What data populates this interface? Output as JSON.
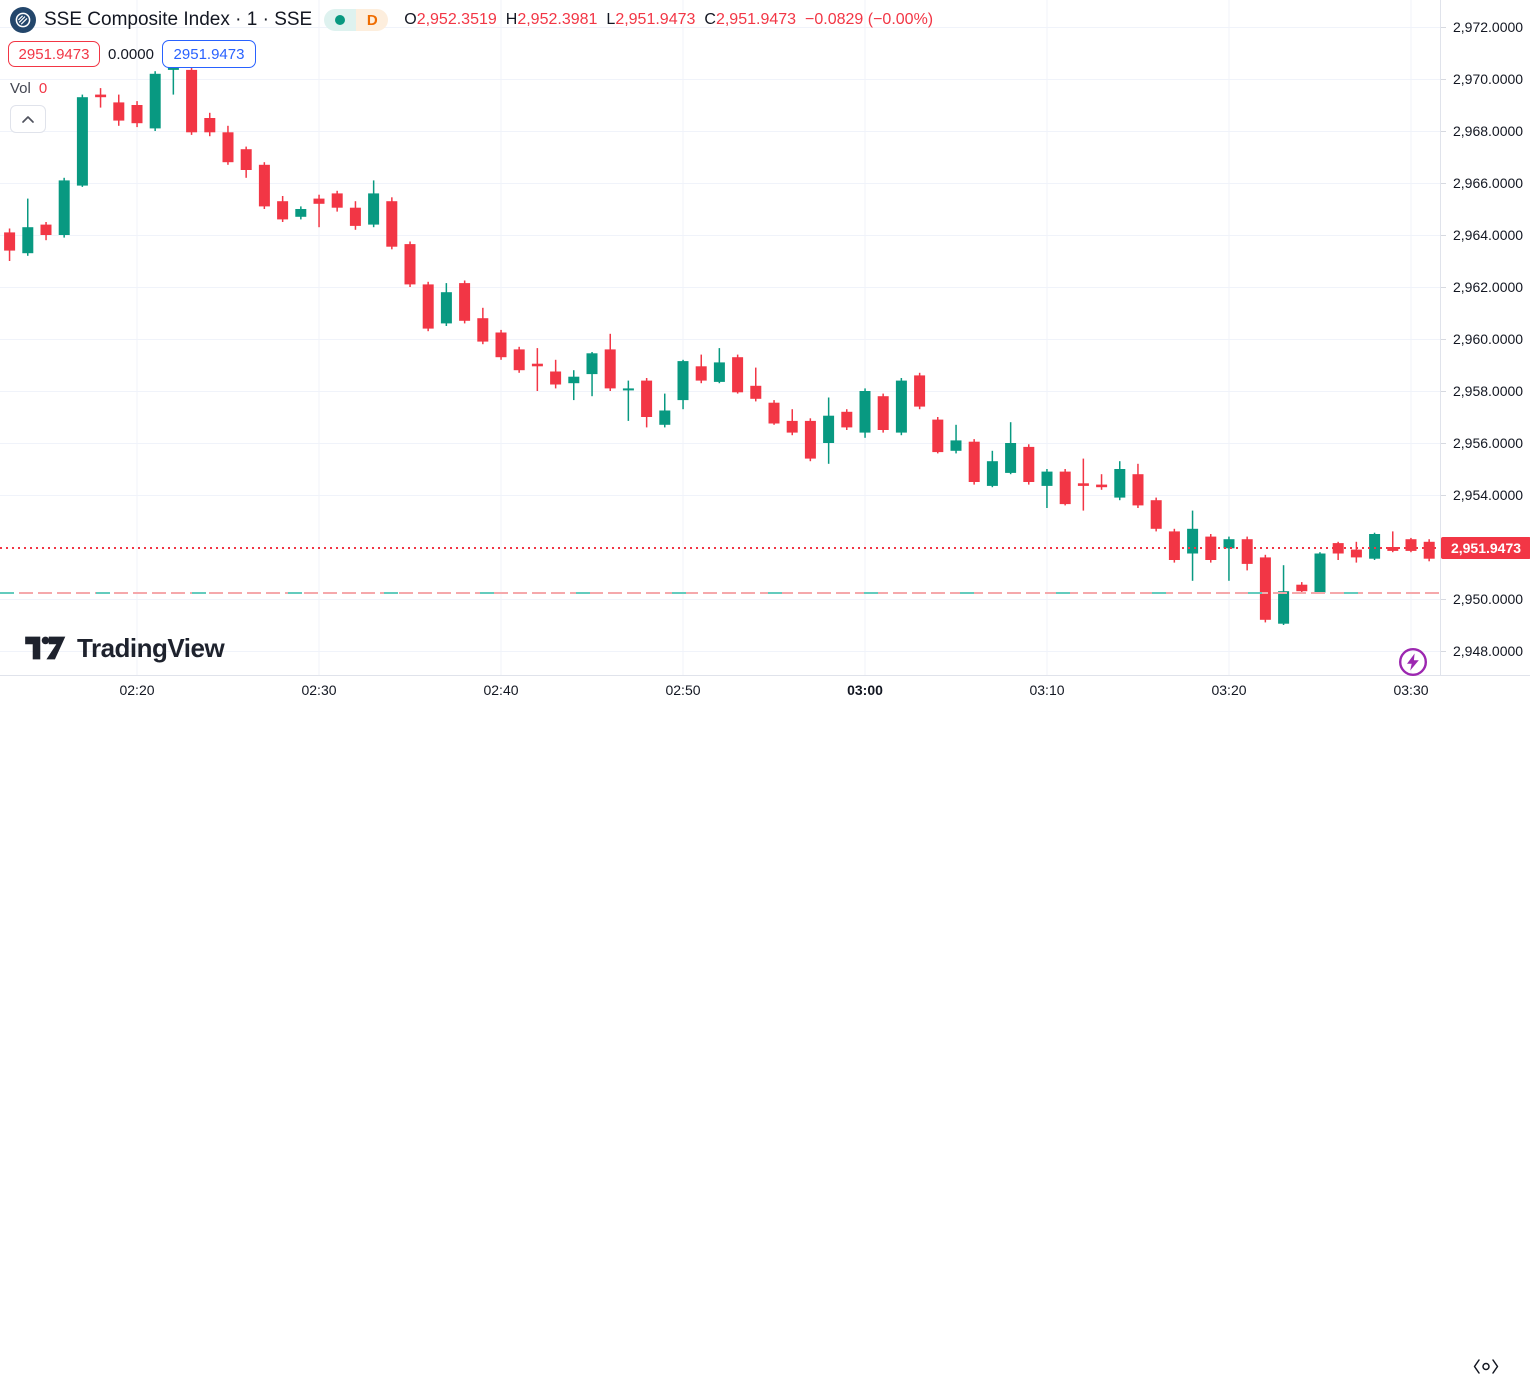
{
  "header": {
    "symbol_title": "SSE Composite Index · 1 · SSE",
    "interval_label": "D",
    "ohlc": [
      {
        "label": "O",
        "value": "2,952.3519"
      },
      {
        "label": "H",
        "value": "2,952.3981"
      },
      {
        "label": "L",
        "value": "2,951.9473"
      },
      {
        "label": "C",
        "value": "2,951.9473"
      }
    ],
    "change": "−0.0829 (−0.00%)",
    "sell_price": "2951.9473",
    "spread": "0.0000",
    "buy_price": "2951.9473",
    "vol_label": "Vol",
    "vol_value": "0"
  },
  "watermark_text": "TradingView",
  "price_axis": {
    "ticks": [
      "2,972.0000",
      "2,970.0000",
      "2,968.0000",
      "2,966.0000",
      "2,964.0000",
      "2,962.0000",
      "2,960.0000",
      "2,958.0000",
      "2,956.0000",
      "2,954.0000",
      "2,950.0000",
      "2,948.0000"
    ],
    "current_price_label": "2,951.9473"
  },
  "time_axis": {
    "labels": [
      "02:20",
      "02:30",
      "02:40",
      "02:50",
      "03:00",
      "03:10",
      "03:20",
      "03:30"
    ],
    "bold_label": "03:00"
  },
  "colors": {
    "up": "#089981",
    "down": "#f23645",
    "blue": "#2962ff",
    "text": "#131722",
    "grid": "#f0f3fa",
    "axis_border": "#e0e3eb",
    "current_line": "#f23645",
    "session_pink": "#f5a8ab",
    "session_teal": "#63cbbd",
    "purple": "#9c27b0",
    "logo_navy": "#23466b",
    "interval_orange": "#ef6c00"
  },
  "chart_data": {
    "type": "candlestick",
    "title": "SSE Composite Index",
    "exchange": "SSE",
    "interval": "1 minute",
    "open": "2,952.3519",
    "high": "2,952.3981",
    "low": "2,951.9473",
    "close": "2,951.9473",
    "change": "−0.0829 (−0.00%)",
    "current_price": 2951.9473,
    "session_line_price": 2950.23,
    "ylim": [
      2947.1,
      2972.7
    ],
    "x_start_time": "02:13",
    "x_end_time": "03:31",
    "grid": true,
    "legend_position": "top-left",
    "candles_ohlc": [
      [
        2964.1,
        2964.25,
        2963.0,
        2963.4
      ],
      [
        2963.3,
        2965.4,
        2963.2,
        2964.3
      ],
      [
        2964.4,
        2964.5,
        2963.8,
        2964.0
      ],
      [
        2964.0,
        2966.2,
        2963.9,
        2966.1
      ],
      [
        2965.9,
        2969.4,
        2965.85,
        2969.3
      ],
      [
        2969.4,
        2969.65,
        2968.9,
        2969.3
      ],
      [
        2969.1,
        2969.4,
        2968.2,
        2968.4
      ],
      [
        2969.0,
        2969.15,
        2968.15,
        2968.3
      ],
      [
        2968.1,
        2970.3,
        2968.0,
        2970.2
      ],
      [
        2970.35,
        2970.6,
        2969.4,
        2970.5
      ],
      [
        2970.35,
        2970.6,
        2967.85,
        2967.95
      ],
      [
        2968.5,
        2968.7,
        2967.8,
        2967.95
      ],
      [
        2967.95,
        2968.2,
        2966.7,
        2966.8
      ],
      [
        2967.3,
        2967.4,
        2966.2,
        2966.5
      ],
      [
        2966.7,
        2966.8,
        2965.0,
        2965.1
      ],
      [
        2965.3,
        2965.5,
        2964.5,
        2964.6
      ],
      [
        2964.7,
        2965.1,
        2964.6,
        2965.0
      ],
      [
        2965.4,
        2965.55,
        2964.3,
        2965.2
      ],
      [
        2965.6,
        2965.7,
        2964.9,
        2965.05
      ],
      [
        2965.05,
        2965.3,
        2964.2,
        2964.35
      ],
      [
        2964.4,
        2966.1,
        2964.3,
        2965.6
      ],
      [
        2965.3,
        2965.45,
        2963.45,
        2963.55
      ],
      [
        2963.65,
        2963.75,
        2962.0,
        2962.1
      ],
      [
        2962.1,
        2962.2,
        2960.3,
        2960.4
      ],
      [
        2960.6,
        2962.15,
        2960.5,
        2961.8
      ],
      [
        2962.15,
        2962.25,
        2960.6,
        2960.7
      ],
      [
        2960.8,
        2961.2,
        2959.8,
        2959.9
      ],
      [
        2960.25,
        2960.35,
        2959.2,
        2959.3
      ],
      [
        2959.6,
        2959.7,
        2958.7,
        2958.8
      ],
      [
        2959.05,
        2959.65,
        2958.0,
        2958.95
      ],
      [
        2958.75,
        2959.2,
        2958.1,
        2958.25
      ],
      [
        2958.3,
        2958.8,
        2957.65,
        2958.55
      ],
      [
        2958.65,
        2959.5,
        2957.8,
        2959.45
      ],
      [
        2959.6,
        2960.2,
        2958.0,
        2958.1
      ],
      [
        2958.05,
        2958.4,
        2956.85,
        2958.1
      ],
      [
        2958.4,
        2958.5,
        2956.6,
        2957.0
      ],
      [
        2956.7,
        2957.9,
        2956.6,
        2957.25
      ],
      [
        2957.65,
        2959.2,
        2957.3,
        2959.15
      ],
      [
        2958.95,
        2959.4,
        2958.3,
        2958.4
      ],
      [
        2958.35,
        2959.65,
        2958.3,
        2959.1
      ],
      [
        2959.3,
        2959.4,
        2957.9,
        2957.95
      ],
      [
        2958.2,
        2958.9,
        2957.6,
        2957.7
      ],
      [
        2957.55,
        2957.65,
        2956.7,
        2956.75
      ],
      [
        2956.85,
        2957.3,
        2956.3,
        2956.4
      ],
      [
        2956.85,
        2956.95,
        2955.3,
        2955.4
      ],
      [
        2956.0,
        2957.75,
        2955.2,
        2957.05
      ],
      [
        2957.2,
        2957.3,
        2956.5,
        2956.6
      ],
      [
        2956.4,
        2958.1,
        2956.2,
        2958.0
      ],
      [
        2957.8,
        2957.9,
        2956.4,
        2956.5
      ],
      [
        2956.4,
        2958.5,
        2956.3,
        2958.4
      ],
      [
        2958.6,
        2958.7,
        2957.3,
        2957.4
      ],
      [
        2956.9,
        2957.0,
        2955.6,
        2955.65
      ],
      [
        2955.7,
        2956.7,
        2955.6,
        2956.1
      ],
      [
        2956.05,
        2956.15,
        2954.4,
        2954.5
      ],
      [
        2954.35,
        2955.7,
        2954.3,
        2955.3
      ],
      [
        2954.85,
        2956.8,
        2954.8,
        2956.0
      ],
      [
        2955.85,
        2955.95,
        2954.4,
        2954.5
      ],
      [
        2954.35,
        2955.0,
        2953.5,
        2954.9
      ],
      [
        2954.9,
        2955.0,
        2953.6,
        2953.65
      ],
      [
        2954.45,
        2955.4,
        2953.4,
        2954.35
      ],
      [
        2954.4,
        2954.8,
        2954.2,
        2954.3
      ],
      [
        2953.9,
        2955.3,
        2953.8,
        2955.0
      ],
      [
        2954.8,
        2955.2,
        2953.5,
        2953.6
      ],
      [
        2953.8,
        2953.9,
        2952.6,
        2952.7
      ],
      [
        2952.6,
        2952.7,
        2951.4,
        2951.5
      ],
      [
        2951.75,
        2953.4,
        2950.7,
        2952.7
      ],
      [
        2952.4,
        2952.5,
        2951.4,
        2951.5
      ],
      [
        2951.95,
        2952.4,
        2950.7,
        2952.3
      ],
      [
        2952.3,
        2952.4,
        2951.1,
        2951.35
      ],
      [
        2951.6,
        2951.7,
        2949.1,
        2949.2
      ],
      [
        2949.05,
        2951.3,
        2949.0,
        2950.3
      ],
      [
        2950.55,
        2950.65,
        2950.2,
        2950.3
      ],
      [
        2950.25,
        2951.8,
        2950.2,
        2951.75
      ],
      [
        2952.15,
        2952.2,
        2951.5,
        2951.75
      ],
      [
        2951.9,
        2952.2,
        2951.4,
        2951.6
      ],
      [
        2951.55,
        2952.55,
        2951.5,
        2952.5
      ],
      [
        2952.0,
        2952.6,
        2951.8,
        2951.85
      ],
      [
        2952.3,
        2952.35,
        2951.8,
        2951.85
      ],
      [
        2952.2,
        2952.3,
        2951.45,
        2951.55
      ]
    ]
  }
}
